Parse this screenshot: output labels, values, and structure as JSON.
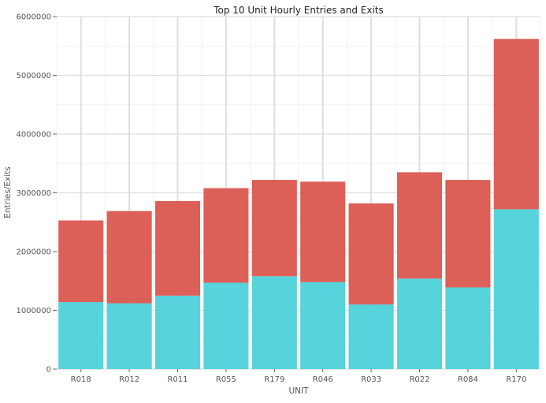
{
  "chart_data": {
    "type": "bar",
    "stacked": true,
    "title": "Top 10 Unit Hourly Entries and Exits",
    "xlabel": "UNIT",
    "ylabel": "Entries/Exits",
    "categories": [
      "R018",
      "R012",
      "R011",
      "R055",
      "R179",
      "R046",
      "R033",
      "R022",
      "R084",
      "R170"
    ],
    "series": [
      {
        "color": "#56d3db",
        "values": [
          1140000,
          1120000,
          1250000,
          1470000,
          1580000,
          1480000,
          1100000,
          1540000,
          1390000,
          2720000
        ]
      },
      {
        "color": "#dc5f58",
        "values": [
          1390000,
          1570000,
          1610000,
          1610000,
          1640000,
          1710000,
          1720000,
          1810000,
          1830000,
          2900000
        ]
      }
    ],
    "ylim": [
      0,
      6000000
    ],
    "yticks": [
      "0",
      "1000000",
      "2000000",
      "3000000",
      "4000000",
      "5000000",
      "6000000"
    ],
    "grid": true,
    "legend": "none"
  }
}
